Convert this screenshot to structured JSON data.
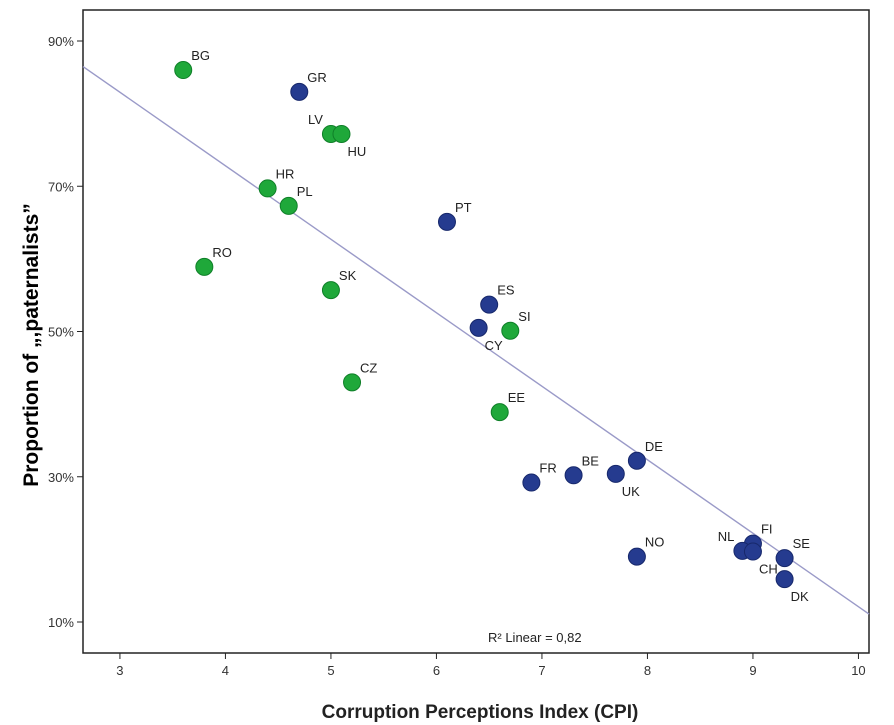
{
  "chart_data": {
    "type": "scatter",
    "xlabel": "Corruption Perceptions Index (CPI)",
    "ylabel": "Proportion of „,paternalists”",
    "xlim": [
      2.65,
      10.1
    ],
    "ylim": [
      0,
      100
    ],
    "x_ticks": [
      3,
      4,
      5,
      6,
      7,
      8,
      9,
      10
    ],
    "y_ticks": [
      10,
      30,
      50,
      70,
      90
    ],
    "y_tick_labels": [
      "10%",
      "30%",
      "50%",
      "70%",
      "90%"
    ],
    "fit_line": {
      "label": "R² Linear = 0,82",
      "slope": -10.12,
      "intercept": 113.3
    },
    "colors": {
      "green": "#1fa83a",
      "blue": "#253b8f",
      "fit": "#9a9ac8"
    },
    "points": [
      {
        "label": "BG",
        "x": 3.6,
        "y": 86.0,
        "group": "green"
      },
      {
        "label": "GR",
        "x": 4.7,
        "y": 83.0,
        "group": "blue"
      },
      {
        "label": "LV",
        "x": 5.0,
        "y": 77.2,
        "group": "green"
      },
      {
        "label": "HU",
        "x": 5.1,
        "y": 77.2,
        "group": "green"
      },
      {
        "label": "HR",
        "x": 4.4,
        "y": 69.7,
        "group": "green"
      },
      {
        "label": "PL",
        "x": 4.6,
        "y": 67.3,
        "group": "green"
      },
      {
        "label": "PT",
        "x": 6.1,
        "y": 65.1,
        "group": "blue"
      },
      {
        "label": "RO",
        "x": 3.8,
        "y": 58.9,
        "group": "green"
      },
      {
        "label": "SK",
        "x": 5.0,
        "y": 55.7,
        "group": "green"
      },
      {
        "label": "ES",
        "x": 6.5,
        "y": 53.7,
        "group": "blue"
      },
      {
        "label": "CY",
        "x": 6.4,
        "y": 50.5,
        "group": "blue"
      },
      {
        "label": "SI",
        "x": 6.7,
        "y": 50.1,
        "group": "green"
      },
      {
        "label": "CZ",
        "x": 5.2,
        "y": 43.0,
        "group": "green"
      },
      {
        "label": "EE",
        "x": 6.6,
        "y": 38.9,
        "group": "green"
      },
      {
        "label": "DE",
        "x": 7.9,
        "y": 32.2,
        "group": "blue"
      },
      {
        "label": "BE",
        "x": 7.3,
        "y": 30.2,
        "group": "blue"
      },
      {
        "label": "UK",
        "x": 7.7,
        "y": 30.4,
        "group": "blue"
      },
      {
        "label": "FR",
        "x": 6.9,
        "y": 29.2,
        "group": "blue"
      },
      {
        "label": "FI",
        "x": 9.0,
        "y": 20.8,
        "group": "blue"
      },
      {
        "label": "NL",
        "x": 8.9,
        "y": 19.8,
        "group": "blue"
      },
      {
        "label": "CH",
        "x": 9.0,
        "y": 19.7,
        "group": "blue"
      },
      {
        "label": "SE",
        "x": 9.3,
        "y": 18.8,
        "group": "blue"
      },
      {
        "label": "NO",
        "x": 7.9,
        "y": 19.0,
        "group": "blue"
      },
      {
        "label": "DK",
        "x": 9.3,
        "y": 15.9,
        "group": "blue"
      }
    ]
  }
}
